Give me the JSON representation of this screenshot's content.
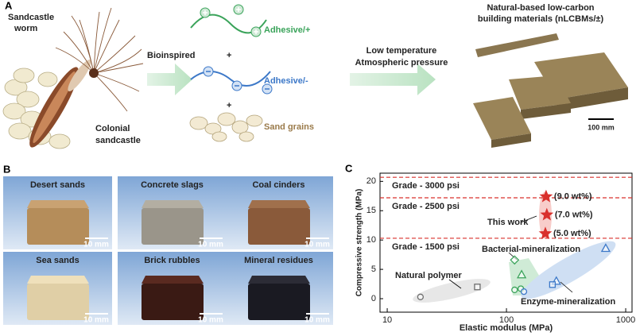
{
  "panel_a": {
    "label": "A",
    "worm": [
      "Sandcastle",
      "worm"
    ],
    "colony": [
      "Colonial",
      "sandcastle"
    ],
    "bioinspired": "Bioinspired",
    "adhesive_pos": "Adhesive/+",
    "plus_1": "+",
    "adhesive_neg": "Adhesive/-",
    "plus_2": "+",
    "sand": "Sand grains",
    "conditions": [
      "Low temperature",
      "Atmospheric pressure"
    ],
    "product": [
      "Natural-based low-carbon",
      "building materials (nLCBMs/±)"
    ],
    "scale": "100 mm"
  },
  "panel_b": {
    "label": "B",
    "tiles": [
      {
        "name": "Desert sands",
        "scale": "10 mm"
      },
      {
        "name": "Concrete slags",
        "scale": "10 mm"
      },
      {
        "name": "Coal cinders",
        "scale": "10 mm"
      },
      {
        "name": "Sea sands",
        "scale": "10 mm"
      },
      {
        "name": "Brick rubbles",
        "scale": "10 mm"
      },
      {
        "name": "Mineral residues",
        "scale": "10 mm"
      }
    ]
  },
  "chart_data": {
    "type": "scatter",
    "panel_label": "C",
    "x_label": "Elastic modulus (MPa)",
    "y_label": "Compressive strength (MPa)",
    "log_x": true,
    "xlim": [
      8.7,
      1130
    ],
    "xticks": [
      10,
      100,
      1000
    ],
    "ylim": [
      -2.3,
      21.4
    ],
    "yticks": [
      0,
      5,
      10,
      15,
      20
    ],
    "reference_lines": [
      {
        "value": 20.7,
        "label": "Grade - 3000 psi"
      },
      {
        "value": 17.2,
        "label": "Grade - 2500 psi"
      },
      {
        "value": 10.3,
        "label": "Grade - 1500 psi"
      }
    ],
    "reference_color": "#d9302c",
    "series": [
      {
        "name": "Natural polymer",
        "color": "#6d6d6d",
        "x": [
          19,
          57
        ],
        "values": [
          0.3,
          2.0
        ],
        "markers": [
          "circle",
          "square"
        ]
      },
      {
        "name": "Bacterial-mineralization",
        "color": "#3aa35a",
        "x": [
          117,
          134,
          117,
          132
        ],
        "values": [
          6.6,
          4.1,
          1.5,
          1.7
        ],
        "markers": [
          "diamond",
          "triangle",
          "circle",
          "circle"
        ]
      },
      {
        "name": "Enzyme-mineralization",
        "color": "#3c78c8",
        "x": [
          680,
          262,
          243,
          140
        ],
        "values": [
          8.6,
          3.0,
          2.4,
          1.2
        ],
        "markers": [
          "triangle",
          "triangle",
          "square",
          "circle"
        ]
      },
      {
        "name": "This work",
        "color": "#d9302c",
        "x": [
          212,
          218,
          215
        ],
        "values": [
          11.1,
          14.3,
          17.4
        ],
        "markers": [
          "star",
          "star",
          "star"
        ],
        "point_labels": [
          "(5.0 wt%)",
          "(7.0 wt%)",
          "(9.0 wt%)"
        ]
      }
    ]
  }
}
